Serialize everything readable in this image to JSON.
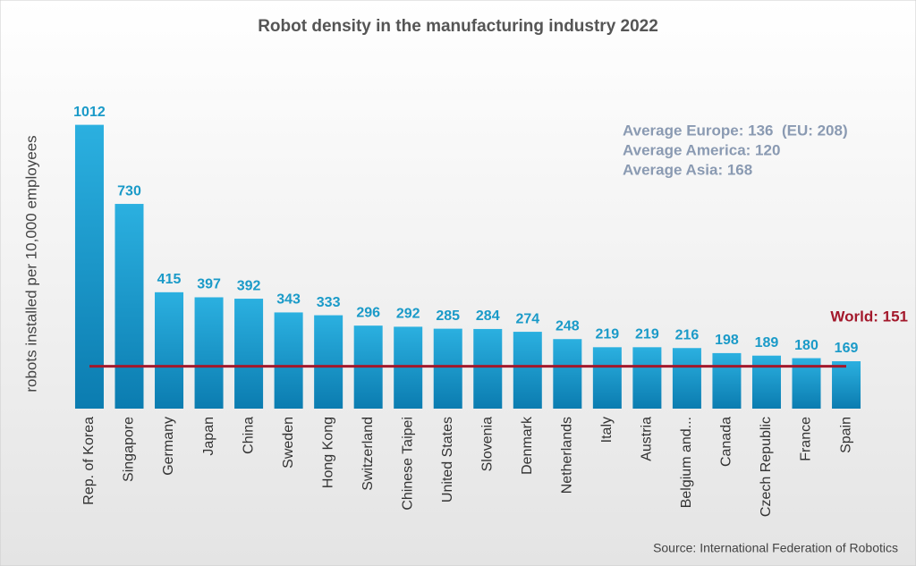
{
  "chart_data": {
    "type": "bar",
    "title": "Robot density in the manufacturing industry 2022",
    "y_label": "robots installed per 10,000 employees",
    "categories": [
      "Rep. of Korea",
      "Singapore",
      "Germany",
      "Japan",
      "China",
      "Sweden",
      "Hong Kong",
      "Switzerland",
      "Chinese Taipei",
      "United States",
      "Slovenia",
      "Denmark",
      "Netherlands",
      "Italy",
      "Austria",
      "Belgium and...",
      "Canada",
      "Czech Republic",
      "France",
      "Spain"
    ],
    "values": [
      1012,
      730,
      415,
      397,
      392,
      343,
      333,
      296,
      292,
      285,
      284,
      274,
      248,
      219,
      219,
      216,
      198,
      189,
      180,
      169
    ],
    "color": "#1a9fd2",
    "ylim": [
      0,
      1100
    ],
    "reference_line": {
      "value": 151,
      "label": "World: 151",
      "color": "#a3182b"
    },
    "annotations": [
      "Average Europe: 136  (EU: 208)",
      "Average America: 120",
      "Average Asia: 168"
    ],
    "source": "Source: International Federation of Robotics"
  }
}
